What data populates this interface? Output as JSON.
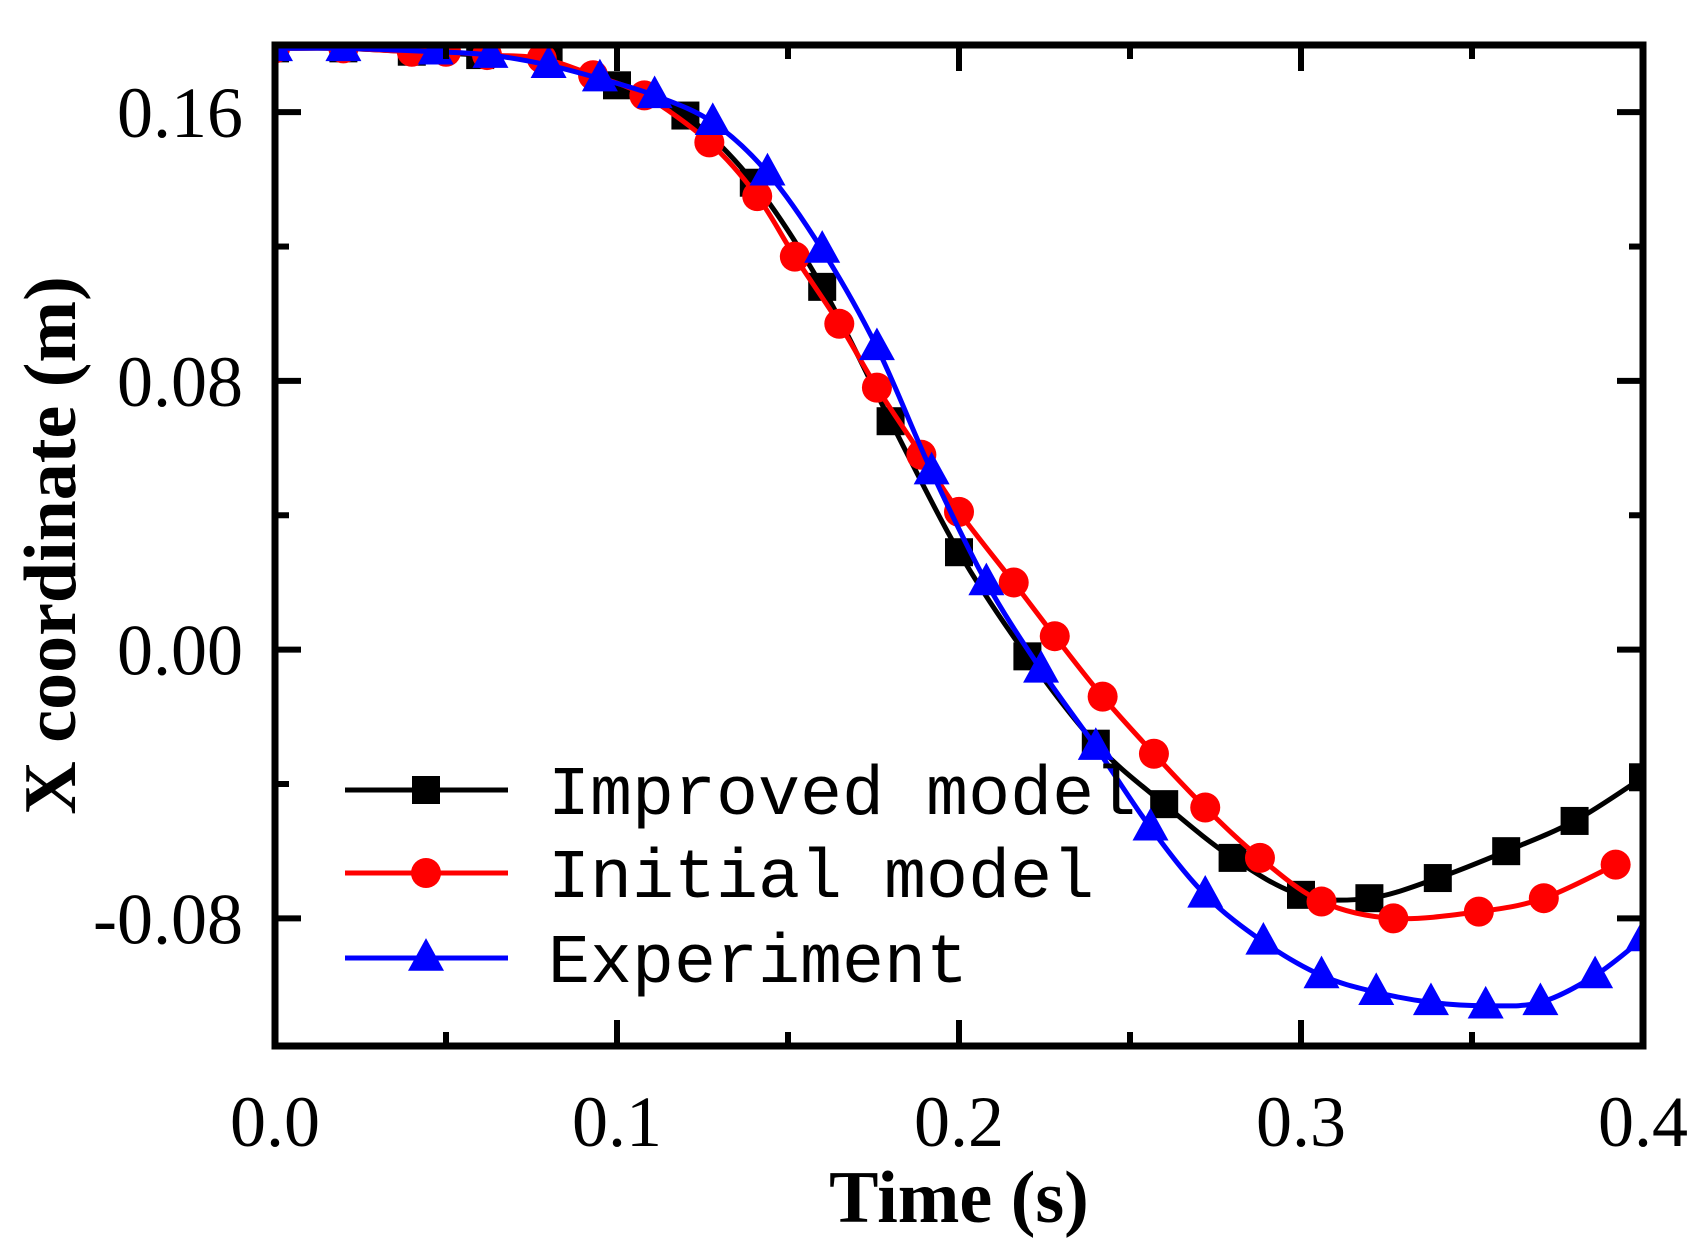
{
  "chart_data": {
    "type": "line",
    "title": "",
    "xlabel": "Time (s)",
    "ylabel": "X coordinate (m)",
    "xlim": [
      0.0,
      0.4
    ],
    "ylim": [
      -0.118,
      0.18
    ],
    "xticks": [
      0.0,
      0.1,
      0.2,
      0.3,
      0.4
    ],
    "xtick_labels": [
      "0.0",
      "0.1",
      "0.2",
      "0.3",
      "0.4"
    ],
    "xminor": [
      0.05,
      0.15,
      0.25,
      0.35
    ],
    "yticks": [
      0.16,
      0.08,
      0.0,
      -0.08
    ],
    "ytick_labels": [
      "0.16",
      "0.08",
      "0.00",
      "-0.08"
    ],
    "yminor": [
      0.12,
      0.04,
      -0.04
    ],
    "grid": false,
    "legend_position": "bottom-left",
    "series": [
      {
        "name": "Improved model",
        "color": "#000000",
        "marker": "square",
        "x": [
          0.0,
          0.02,
          0.04,
          0.06,
          0.08,
          0.1,
          0.12,
          0.14,
          0.16,
          0.18,
          0.2,
          0.22,
          0.24,
          0.26,
          0.28,
          0.3,
          0.32,
          0.34,
          0.36,
          0.38,
          0.4
        ],
        "values": [
          0.179,
          0.179,
          0.178,
          0.177,
          0.175,
          0.168,
          0.159,
          0.139,
          0.108,
          0.068,
          0.029,
          -0.002,
          -0.028,
          -0.046,
          -0.062,
          -0.073,
          -0.074,
          -0.068,
          -0.06,
          -0.051,
          -0.038
        ]
      },
      {
        "name": "Initial model",
        "color": "#ff0000",
        "marker": "circle",
        "x": [
          0.0,
          0.02,
          0.04,
          0.05,
          0.062,
          0.078,
          0.093,
          0.108,
          0.127,
          0.141,
          0.152,
          0.165,
          0.176,
          0.189,
          0.2,
          0.216,
          0.228,
          0.242,
          0.257,
          0.272,
          0.288,
          0.306,
          0.327,
          0.352,
          0.371,
          0.392
        ],
        "values": [
          0.179,
          0.179,
          0.178,
          0.178,
          0.177,
          0.176,
          0.171,
          0.165,
          0.151,
          0.135,
          0.117,
          0.097,
          0.078,
          0.058,
          0.041,
          0.02,
          0.004,
          -0.014,
          -0.031,
          -0.047,
          -0.062,
          -0.075,
          -0.08,
          -0.078,
          -0.074,
          -0.064
        ]
      },
      {
        "name": "Experiment",
        "color": "#0000ff",
        "marker": "triangle",
        "x": [
          0.0,
          0.02,
          0.047,
          0.063,
          0.08,
          0.095,
          0.111,
          0.128,
          0.144,
          0.16,
          0.176,
          0.192,
          0.208,
          0.224,
          0.24,
          0.256,
          0.272,
          0.289,
          0.306,
          0.322,
          0.338,
          0.354,
          0.37,
          0.386,
          0.4
        ],
        "values": [
          0.179,
          0.179,
          0.178,
          0.177,
          0.174,
          0.17,
          0.165,
          0.157,
          0.142,
          0.119,
          0.09,
          0.053,
          0.02,
          -0.006,
          -0.029,
          -0.053,
          -0.073,
          -0.087,
          -0.097,
          -0.102,
          -0.105,
          -0.106,
          -0.105,
          -0.097,
          -0.086
        ]
      }
    ]
  }
}
